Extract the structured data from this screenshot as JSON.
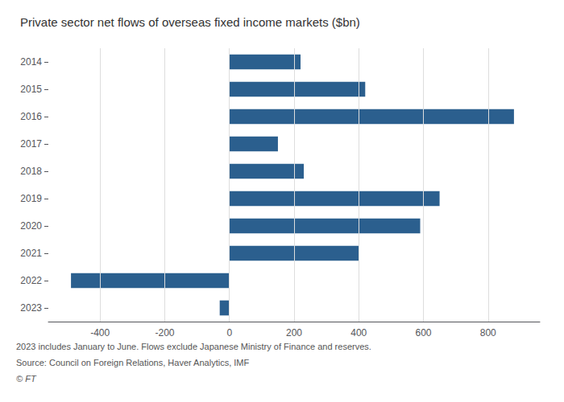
{
  "chart_data": {
    "type": "bar",
    "orientation": "horizontal",
    "title": "Private sector net flows of overseas fixed income markets ($bn)",
    "categories": [
      "2014",
      "2015",
      "2016",
      "2017",
      "2018",
      "2019",
      "2020",
      "2021",
      "2022",
      "2023"
    ],
    "values": [
      220,
      420,
      880,
      150,
      230,
      650,
      590,
      400,
      -490,
      -30
    ],
    "color": "#2b5f8e",
    "xlim": [
      -560,
      960
    ],
    "xticks": [
      -400,
      -200,
      0,
      200,
      400,
      600,
      800
    ],
    "grid": true,
    "annotations": [
      "2023 includes January to June. Flows exclude Japanese Ministry of Finance and reserves.",
      "Source: Council on Foreign Relations, Haver Analytics, IMF",
      "© FT"
    ]
  }
}
